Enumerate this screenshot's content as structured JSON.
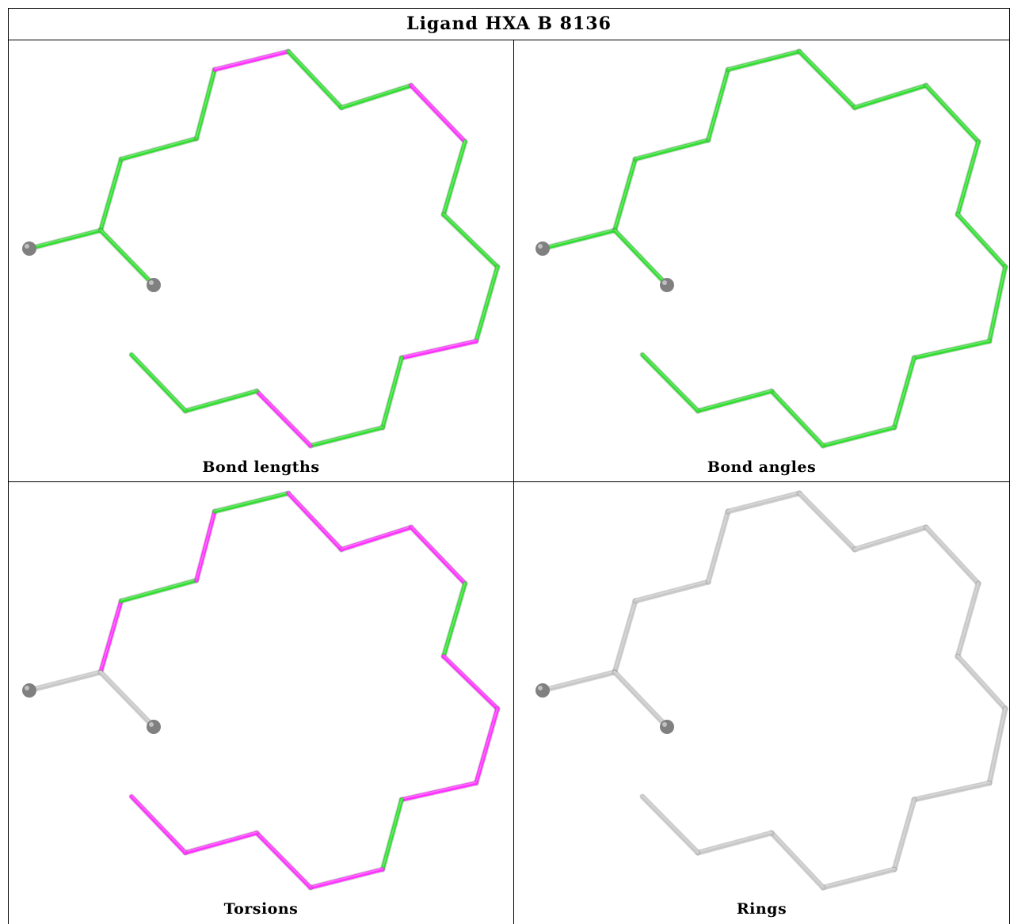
{
  "title": "Ligand HXA B 8136",
  "colors": {
    "outlier": "#ff33ff",
    "ok": "#33dd33",
    "neutral": "#c8c8c8",
    "atom": "#808080"
  },
  "panels": [
    {
      "caption": "Bond lengths",
      "chain": [
        "ok",
        "ok",
        "ok",
        "outlier",
        "ok",
        "ok",
        "outlier",
        "ok",
        "ok",
        "ok",
        "outlier",
        "ok",
        "ok",
        "outlier",
        "ok",
        "ok",
        "ok",
        "outlier"
      ],
      "branch": [
        "ok",
        "ok"
      ]
    },
    {
      "caption": "Bond angles",
      "chain": [
        "ok",
        "ok",
        "ok",
        "ok",
        "ok",
        "ok",
        "ok",
        "ok",
        "ok",
        "ok",
        "ok",
        "ok",
        "ok",
        "ok",
        "ok",
        "ok",
        "outlier",
        "outlier"
      ],
      "branch": [
        "ok",
        "ok"
      ]
    },
    {
      "caption": "Torsions",
      "chain": [
        "outlier",
        "ok",
        "outlier",
        "ok",
        "outlier",
        "outlier",
        "outlier",
        "ok",
        "outlier",
        "outlier",
        "outlier",
        "ok",
        "outlier",
        "outlier",
        "outlier",
        "outlier",
        "outlier",
        "neutral"
      ],
      "branch": [
        "neutral",
        "neutral"
      ]
    },
    {
      "caption": "Rings",
      "chain": [
        "neutral",
        "neutral",
        "neutral",
        "neutral",
        "neutral",
        "neutral",
        "neutral",
        "neutral",
        "neutral",
        "neutral",
        "neutral",
        "neutral",
        "neutral",
        "neutral",
        "neutral",
        "neutral",
        "neutral",
        "neutral"
      ],
      "branch": [
        "neutral",
        "neutral"
      ]
    }
  ]
}
